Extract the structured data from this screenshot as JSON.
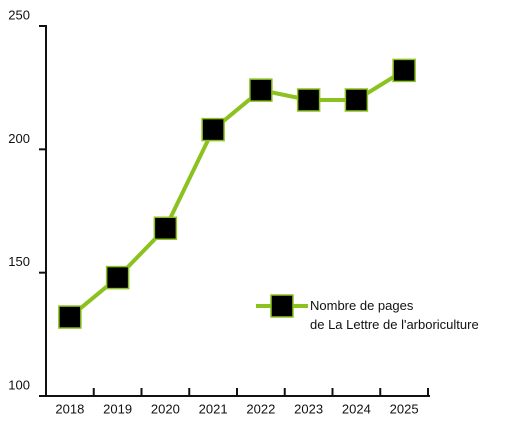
{
  "chart_data": {
    "type": "line",
    "categories": [
      "2018",
      "2019",
      "2020",
      "2021",
      "2022",
      "2023",
      "2024",
      "2025"
    ],
    "series": [
      {
        "name": "Nombre de pages\nde La Lettre de l'arboriculture",
        "color": "#8cc21f",
        "values": [
          132,
          148,
          168,
          208,
          224,
          220,
          220,
          232
        ]
      }
    ],
    "ylim": [
      100,
      250
    ],
    "yticks": [
      100,
      150,
      200,
      250
    ],
    "legend": "right"
  }
}
